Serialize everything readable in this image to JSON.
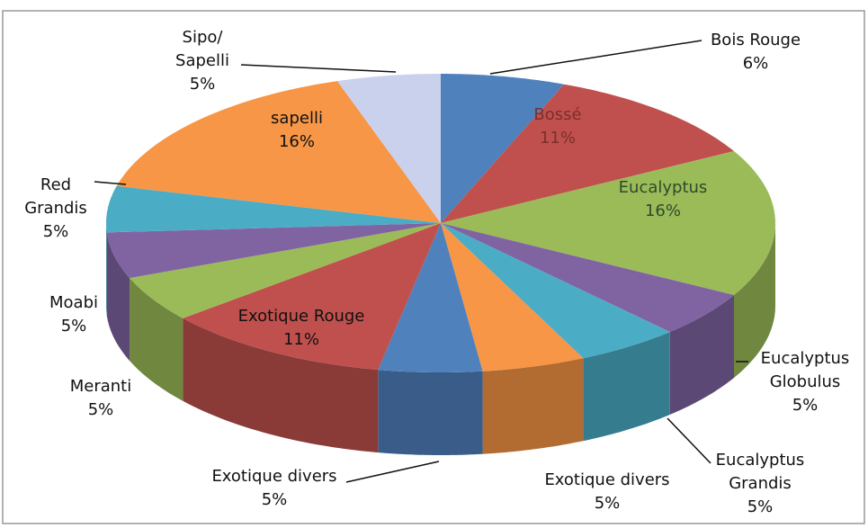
{
  "chart_data": {
    "type": "pie3d",
    "categories": [
      "Bois Rouge",
      "Bossé",
      "Eucalyptus",
      "Eucalyptus Globulus",
      "Eucalyptus Grandis",
      "Exotique divers",
      "Exotique divers",
      "Exotique Rouge",
      "Meranti",
      "Moabi",
      "Red Grandis",
      "sapelli",
      "Sipo/ Sapelli"
    ],
    "values": [
      6,
      11,
      16,
      5,
      5,
      5,
      5,
      11,
      5,
      5,
      5,
      16,
      5
    ],
    "value_labels": [
      "6%",
      "11%",
      "16%",
      "5%",
      "5%",
      "5%",
      "5%",
      "11%",
      "5%",
      "5%",
      "5%",
      "16%",
      "5%"
    ],
    "colors": [
      "#4f81bd",
      "#c0504d",
      "#9bbb59",
      "#8064a2",
      "#4bacc6",
      "#f79646",
      "#4f81bd",
      "#c0504d",
      "#9bbb59",
      "#8064a2",
      "#4bacc6",
      "#f79646",
      "#c9d1ec"
    ]
  }
}
